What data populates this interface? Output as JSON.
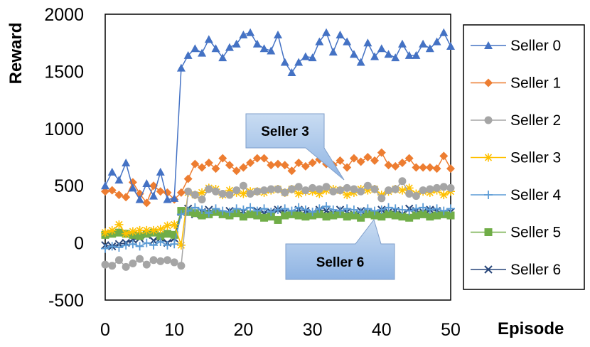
{
  "chart_data": {
    "type": "line",
    "xlabel": "Episode",
    "ylabel": "Reward",
    "xlim": [
      0,
      50
    ],
    "ylim": [
      -500,
      2000
    ],
    "x_ticks": [
      "0",
      "10",
      "20",
      "30",
      "40",
      "50"
    ],
    "y_ticks": [
      "2000",
      "1500",
      "1000",
      "500",
      "0",
      "-500"
    ],
    "grid": false,
    "legend_position": "right",
    "x": [
      0,
      1,
      2,
      3,
      4,
      5,
      6,
      7,
      8,
      9,
      10,
      11,
      12,
      13,
      14,
      15,
      16,
      17,
      18,
      19,
      20,
      21,
      22,
      23,
      24,
      25,
      26,
      27,
      28,
      29,
      30,
      31,
      32,
      33,
      34,
      35,
      36,
      37,
      38,
      39,
      40,
      41,
      42,
      43,
      44,
      45,
      46,
      47,
      48,
      49,
      50
    ],
    "series": [
      {
        "name": "Seller 0",
        "color": "#4472C4",
        "marker": "triangle",
        "values": [
          500,
          620,
          550,
          700,
          480,
          380,
          520,
          410,
          620,
          380,
          390,
          1530,
          1640,
          1700,
          1660,
          1780,
          1700,
          1620,
          1710,
          1740,
          1820,
          1840,
          1740,
          1700,
          1680,
          1820,
          1580,
          1490,
          1580,
          1630,
          1620,
          1760,
          1840,
          1670,
          1820,
          1760,
          1650,
          1580,
          1750,
          1630,
          1700,
          1650,
          1620,
          1740,
          1640,
          1640,
          1740,
          1700,
          1760,
          1840,
          1720
        ]
      },
      {
        "name": "Seller 1",
        "color": "#ED7D31",
        "marker": "diamond",
        "values": [
          450,
          460,
          420,
          400,
          530,
          430,
          350,
          500,
          450,
          440,
          380,
          440,
          560,
          690,
          660,
          700,
          650,
          740,
          680,
          630,
          660,
          700,
          740,
          740,
          680,
          690,
          680,
          630,
          700,
          670,
          700,
          730,
          690,
          680,
          720,
          660,
          740,
          710,
          750,
          720,
          790,
          680,
          670,
          700,
          740,
          660,
          660,
          660,
          650,
          760,
          650
        ]
      },
      {
        "name": "Seller 2",
        "color": "#A5A5A5",
        "marker": "circle",
        "values": [
          -190,
          -200,
          -150,
          -210,
          -180,
          -140,
          -190,
          -150,
          -160,
          -150,
          -170,
          -200,
          450,
          420,
          380,
          470,
          450,
          430,
          420,
          460,
          500,
          430,
          450,
          460,
          470,
          470,
          440,
          470,
          490,
          460,
          480,
          470,
          490,
          450,
          460,
          480,
          470,
          450,
          500,
          470,
          390,
          460,
          470,
          540,
          430,
          410,
          460,
          470,
          480,
          490,
          480
        ]
      },
      {
        "name": "Seller 3",
        "color": "#FFC000",
        "marker": "star",
        "values": [
          90,
          110,
          160,
          80,
          100,
          110,
          110,
          110,
          120,
          150,
          160,
          -20,
          440,
          420,
          440,
          480,
          470,
          420,
          460,
          440,
          430,
          450,
          450,
          440,
          460,
          470,
          440,
          470,
          430,
          450,
          450,
          430,
          460,
          470,
          460,
          420,
          440,
          470,
          460,
          470,
          420,
          450,
          470,
          460,
          480,
          430,
          450,
          440,
          460,
          420,
          450
        ]
      },
      {
        "name": "Seller 4",
        "color": "#5B9BD5",
        "marker": "plus",
        "values": [
          -50,
          -30,
          -40,
          -20,
          -10,
          -30,
          0,
          -20,
          10,
          -20,
          -10,
          250,
          280,
          310,
          290,
          260,
          300,
          280,
          270,
          300,
          290,
          310,
          280,
          300,
          270,
          290,
          300,
          280,
          310,
          290,
          270,
          300,
          320,
          290,
          280,
          300,
          290,
          270,
          300,
          280,
          290,
          310,
          300,
          290,
          280,
          300,
          310,
          290,
          300,
          280,
          300
        ]
      },
      {
        "name": "Seller 5",
        "color": "#70AD47",
        "marker": "square",
        "values": [
          70,
          80,
          90,
          80,
          70,
          60,
          80,
          90,
          60,
          80,
          70,
          280,
          270,
          260,
          240,
          250,
          270,
          250,
          240,
          260,
          230,
          250,
          240,
          220,
          230,
          200,
          240,
          250,
          240,
          230,
          240,
          250,
          230,
          240,
          250,
          230,
          240,
          220,
          250,
          240,
          230,
          250,
          240,
          230,
          220,
          240,
          250,
          230,
          240,
          250,
          240
        ]
      },
      {
        "name": "Seller 6",
        "color": "#264478",
        "marker": "x",
        "values": [
          -20,
          -30,
          -10,
          0,
          30,
          40,
          70,
          20,
          40,
          0,
          40,
          270,
          300,
          250,
          270,
          290,
          270,
          250,
          280,
          260,
          270,
          250,
          280,
          260,
          270,
          290,
          270,
          260,
          290,
          280,
          260,
          290,
          280,
          260,
          290,
          270,
          250,
          280,
          270,
          260,
          290,
          270,
          280,
          250,
          300,
          280,
          270,
          290,
          280,
          260,
          270
        ]
      }
    ],
    "annotations": [
      {
        "text": "Seller 3",
        "target_series": "Seller 3"
      },
      {
        "text": "Seller 6",
        "target_series": "Seller 6"
      }
    ]
  }
}
